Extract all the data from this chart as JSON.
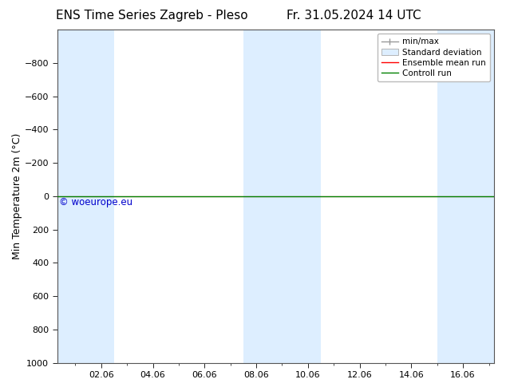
{
  "title_left": "ENS Time Series Zagreb - Pleso",
  "title_right": "Fr. 31.05.2024 14 UTC",
  "ylabel": "Min Temperature 2m (°C)",
  "ylim_bottom": 1000,
  "ylim_top": -1000,
  "yticks": [
    -800,
    -600,
    -400,
    -200,
    0,
    200,
    400,
    600,
    800,
    1000
  ],
  "xtick_labels": [
    "02.06",
    "04.06",
    "06.06",
    "08.06",
    "10.06",
    "12.06",
    "14.06",
    "16.06"
  ],
  "xtick_positions": [
    2,
    4,
    6,
    8,
    10,
    12,
    14,
    16
  ],
  "xlim": [
    0.3,
    17.2
  ],
  "watermark": "© woeurope.eu",
  "watermark_color": "#0000cc",
  "background_color": "#ffffff",
  "plot_bg_color": "#ffffff",
  "shaded_bands": [
    [
      0.3,
      1.5
    ],
    [
      1.5,
      2.5
    ],
    [
      7.5,
      8.5
    ],
    [
      8.5,
      10.5
    ],
    [
      15.0,
      17.2
    ]
  ],
  "shaded_color": "#ddeeff",
  "line_y": 0,
  "ensemble_mean_color": "#ff0000",
  "control_run_color": "#008000",
  "legend_labels": [
    "min/max",
    "Standard deviation",
    "Ensemble mean run",
    "Controll run"
  ],
  "font_size": 9,
  "title_font_size": 11
}
